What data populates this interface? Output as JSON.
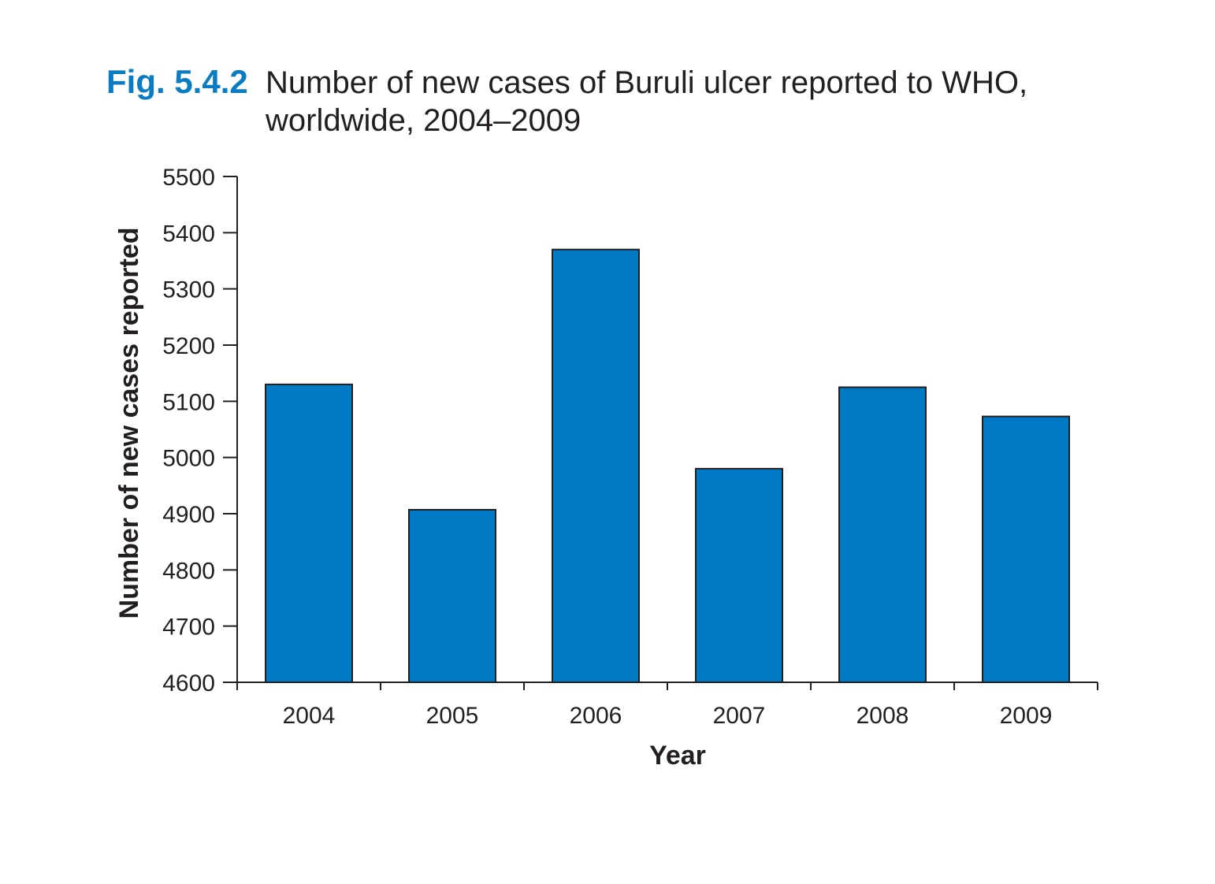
{
  "figure": {
    "label": "Fig. 5.4.2",
    "title_lines": [
      "Number of new cases of Buruli ulcer reported to WHO,",
      "worldwide, 2004–2009"
    ]
  },
  "colors": {
    "label": "#0a7cc4",
    "bar_fill": "#007ac4",
    "bar_stroke": "#231f20",
    "axis": "#231f20"
  },
  "chart_data": {
    "type": "bar",
    "title": "Number of new cases of Buruli ulcer reported to WHO, worldwide, 2004–2009",
    "xlabel": "Year",
    "ylabel": "Number of new cases reported",
    "categories": [
      "2004",
      "2005",
      "2006",
      "2007",
      "2008",
      "2009"
    ],
    "values": [
      5130,
      4907,
      5370,
      4980,
      5125,
      5073
    ],
    "ylim": [
      4600,
      5500
    ],
    "yticks": [
      4600,
      4700,
      4800,
      4900,
      5000,
      5100,
      5200,
      5300,
      5400,
      5500
    ],
    "ytick_labels": [
      "4600",
      "4700",
      "4800",
      "4900",
      "5000",
      "5100",
      "5200",
      "5300",
      "5400",
      "5500"
    ],
    "grid": false,
    "legend": "none"
  }
}
